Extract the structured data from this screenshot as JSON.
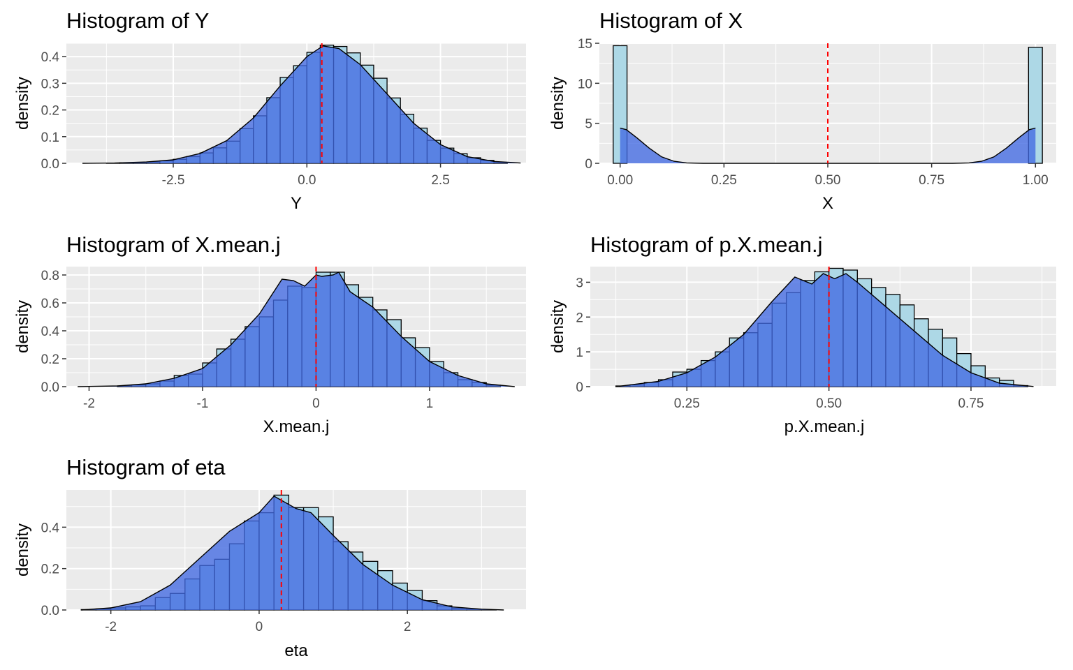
{
  "chart_data": [
    {
      "type": "histogram",
      "title": "Histogram of Y",
      "xlabel": "Y",
      "ylabel": "density",
      "xlim": [
        -4.5,
        4.1
      ],
      "ylim": [
        0,
        0.45
      ],
      "x_ticks": [
        -2.5,
        0,
        2.5
      ],
      "x_tick_labels": [
        "-2.5",
        "0.0",
        "2.5"
      ],
      "y_ticks": [
        0,
        0.1,
        0.2,
        0.3,
        0.4
      ],
      "y_tick_labels": [
        "0.0",
        "0.1",
        "0.2",
        "0.3",
        "0.4"
      ],
      "bin_width": 0.25,
      "bins_x0": [
        -4.25,
        -4.0,
        -3.75,
        -3.5,
        -3.25,
        -3.0,
        -2.75,
        -2.5,
        -2.25,
        -2.0,
        -1.75,
        -1.5,
        -1.25,
        -1.0,
        -0.75,
        -0.5,
        -0.25,
        0.0,
        0.25,
        0.5,
        0.75,
        1.0,
        1.25,
        1.5,
        1.75,
        2.0,
        2.25,
        2.5,
        2.75,
        3.0,
        3.25,
        3.5
      ],
      "bins_density": [
        0,
        0,
        0.001,
        0.002,
        0.003,
        0.005,
        0.009,
        0.015,
        0.025,
        0.039,
        0.058,
        0.083,
        0.13,
        0.178,
        0.246,
        0.322,
        0.366,
        0.416,
        0.443,
        0.438,
        0.414,
        0.368,
        0.319,
        0.245,
        0.184,
        0.132,
        0.086,
        0.057,
        0.036,
        0.021,
        0.011,
        0.003
      ],
      "density_curve": {
        "x": [
          -4.2,
          -3.6,
          -3.0,
          -2.5,
          -2.0,
          -1.5,
          -1.0,
          -0.5,
          0.0,
          0.3,
          0.6,
          1.0,
          1.5,
          2.0,
          2.5,
          3.0,
          3.5,
          4.0
        ],
        "y": [
          0,
          0.001,
          0.005,
          0.013,
          0.037,
          0.085,
          0.17,
          0.29,
          0.4,
          0.44,
          0.43,
          0.37,
          0.26,
          0.15,
          0.07,
          0.025,
          0.007,
          0.001
        ]
      },
      "vline_x": 0.28,
      "fill_color": "#4169E1",
      "outline_fill": "#ADD8E6",
      "vline_color": "#FF0000"
    },
    {
      "type": "histogram",
      "title": "Histogram of X",
      "xlabel": "X",
      "ylabel": "density",
      "xlim": [
        -0.05,
        1.05
      ],
      "ylim": [
        0,
        15
      ],
      "x_ticks": [
        0,
        0.25,
        0.5,
        0.75,
        1.0
      ],
      "x_tick_labels": [
        "0.00",
        "0.25",
        "0.50",
        "0.75",
        "1.00"
      ],
      "y_ticks": [
        0,
        5,
        10,
        15
      ],
      "y_tick_labels": [
        "0",
        "5",
        "10",
        "15"
      ],
      "bin_width": 0.0333,
      "bins_x0": [
        -0.0167,
        0.9833
      ],
      "bins_density": [
        14.7,
        14.5
      ],
      "density_curve": {
        "x": [
          0,
          0.015,
          0.04,
          0.07,
          0.1,
          0.13,
          0.16,
          0.2,
          0.5,
          0.8,
          0.84,
          0.87,
          0.9,
          0.93,
          0.96,
          0.985,
          1.0
        ],
        "y": [
          4.4,
          4.2,
          3.2,
          1.9,
          0.8,
          0.25,
          0.05,
          0,
          0,
          0,
          0.05,
          0.25,
          0.8,
          1.9,
          3.2,
          4.2,
          4.4
        ]
      },
      "vline_x": 0.5,
      "fill_color": "#4169E1",
      "outline_fill": "#ADD8E6",
      "vline_color": "#FF0000"
    },
    {
      "type": "histogram",
      "title": "Histogram of X.mean.j",
      "xlabel": "X.mean.j",
      "ylabel": "density",
      "xlim": [
        -2.2,
        1.85
      ],
      "ylim": [
        0,
        0.86
      ],
      "x_ticks": [
        -2,
        -1,
        0,
        1
      ],
      "x_tick_labels": [
        "-2",
        "-1",
        "0",
        "1"
      ],
      "y_ticks": [
        0,
        0.2,
        0.4,
        0.6,
        0.8
      ],
      "y_tick_labels": [
        "0.0",
        "0.2",
        "0.4",
        "0.6",
        "0.8"
      ],
      "bin_width": 0.125,
      "bins_x0": [
        -1.75,
        -1.625,
        -1.5,
        -1.375,
        -1.25,
        -1.125,
        -1.0,
        -0.875,
        -0.75,
        -0.625,
        -0.5,
        -0.375,
        -0.25,
        -0.125,
        0.0,
        0.125,
        0.25,
        0.375,
        0.5,
        0.625,
        0.75,
        0.875,
        1.0,
        1.125,
        1.25,
        1.375,
        1.5
      ],
      "bins_density": [
        0.005,
        0.012,
        0.02,
        0.04,
        0.08,
        0.09,
        0.17,
        0.27,
        0.34,
        0.43,
        0.5,
        0.62,
        0.72,
        0.71,
        0.82,
        0.82,
        0.73,
        0.64,
        0.55,
        0.48,
        0.35,
        0.28,
        0.18,
        0.1,
        0.05,
        0.03,
        0.01
      ],
      "density_curve": {
        "x": [
          -2.1,
          -1.75,
          -1.5,
          -1.25,
          -1.0,
          -0.75,
          -0.5,
          -0.3,
          -0.2,
          -0.1,
          0.0,
          0.05,
          0.15,
          0.2,
          0.3,
          0.5,
          0.75,
          1.0,
          1.25,
          1.5,
          1.75
        ],
        "y": [
          0,
          0.005,
          0.02,
          0.06,
          0.13,
          0.3,
          0.52,
          0.77,
          0.76,
          0.72,
          0.8,
          0.79,
          0.8,
          0.82,
          0.68,
          0.57,
          0.36,
          0.18,
          0.08,
          0.02,
          0
        ]
      },
      "vline_x": 0.0,
      "fill_color": "#4169E1",
      "outline_fill": "#ADD8E6",
      "vline_color": "#FF0000"
    },
    {
      "type": "histogram",
      "title": "Histogram of p.X.mean.j",
      "xlabel": "p.X.mean.j",
      "ylabel": "density",
      "xlim": [
        0.08,
        0.9
      ],
      "ylim": [
        0,
        3.45
      ],
      "x_ticks": [
        0.25,
        0.5,
        0.75
      ],
      "x_tick_labels": [
        "0.25",
        "0.50",
        "0.75"
      ],
      "y_ticks": [
        0,
        1,
        2,
        3
      ],
      "y_tick_labels": [
        "0",
        "1",
        "2",
        "3"
      ],
      "bin_width": 0.025,
      "bins_x0": [
        0.125,
        0.15,
        0.175,
        0.2,
        0.225,
        0.25,
        0.275,
        0.3,
        0.325,
        0.35,
        0.375,
        0.4,
        0.425,
        0.45,
        0.475,
        0.5,
        0.525,
        0.55,
        0.575,
        0.6,
        0.625,
        0.65,
        0.675,
        0.7,
        0.725,
        0.75,
        0.775,
        0.8,
        0.825
      ],
      "bins_density": [
        0.02,
        0.05,
        0.12,
        0.2,
        0.42,
        0.5,
        0.75,
        1.0,
        1.4,
        1.55,
        1.82,
        2.4,
        2.7,
        3.05,
        3.3,
        3.4,
        3.35,
        3.1,
        2.85,
        2.65,
        2.35,
        1.95,
        1.65,
        1.4,
        0.95,
        0.6,
        0.25,
        0.18,
        0.03
      ],
      "density_curve": {
        "x": [
          0.13,
          0.2,
          0.25,
          0.3,
          0.35,
          0.4,
          0.44,
          0.47,
          0.49,
          0.51,
          0.53,
          0.55,
          0.6,
          0.65,
          0.7,
          0.75,
          0.8,
          0.86
        ],
        "y": [
          0.01,
          0.15,
          0.4,
          0.85,
          1.5,
          2.45,
          3.15,
          2.95,
          3.25,
          3.1,
          3.25,
          3.0,
          2.3,
          1.6,
          0.9,
          0.4,
          0.1,
          0.005
        ]
      },
      "vline_x": 0.5,
      "fill_color": "#4169E1",
      "outline_fill": "#ADD8E6",
      "vline_color": "#FF0000"
    },
    {
      "type": "histogram",
      "title": "Histogram of eta",
      "xlabel": "eta",
      "ylabel": "density",
      "xlim": [
        -2.6,
        3.6
      ],
      "ylim": [
        0,
        0.58
      ],
      "x_ticks": [
        -2,
        0,
        2
      ],
      "x_tick_labels": [
        "-2",
        "0",
        "2"
      ],
      "y_ticks": [
        0,
        0.2,
        0.4
      ],
      "y_tick_labels": [
        "0.0",
        "0.2",
        "0.4"
      ],
      "bin_width": 0.2,
      "bins_x0": [
        -2.4,
        -2.2,
        -2.0,
        -1.8,
        -1.6,
        -1.4,
        -1.2,
        -1.0,
        -0.8,
        -0.6,
        -0.4,
        -0.2,
        0.0,
        0.2,
        0.4,
        0.6,
        0.8,
        1.0,
        1.2,
        1.4,
        1.6,
        1.8,
        2.0,
        2.2,
        2.4,
        2.6,
        2.8,
        3.0
      ],
      "bins_density": [
        0.002,
        0.005,
        0.01,
        0.015,
        0.02,
        0.06,
        0.08,
        0.15,
        0.215,
        0.245,
        0.32,
        0.43,
        0.47,
        0.555,
        0.495,
        0.495,
        0.45,
        0.33,
        0.28,
        0.235,
        0.19,
        0.13,
        0.095,
        0.045,
        0.02,
        0.008,
        0.003,
        0.001
      ],
      "density_curve": {
        "x": [
          -2.4,
          -2.0,
          -1.6,
          -1.2,
          -0.8,
          -0.4,
          0.0,
          0.2,
          0.35,
          0.5,
          0.7,
          1.0,
          1.4,
          1.8,
          2.2,
          2.6,
          3.0,
          3.3
        ],
        "y": [
          0,
          0.01,
          0.04,
          0.12,
          0.25,
          0.38,
          0.47,
          0.55,
          0.52,
          0.49,
          0.47,
          0.36,
          0.22,
          0.12,
          0.05,
          0.015,
          0.004,
          0
        ]
      },
      "vline_x": 0.3,
      "fill_color": "#4169E1",
      "outline_fill": "#ADD8E6",
      "vline_color": "#FF0000"
    }
  ]
}
